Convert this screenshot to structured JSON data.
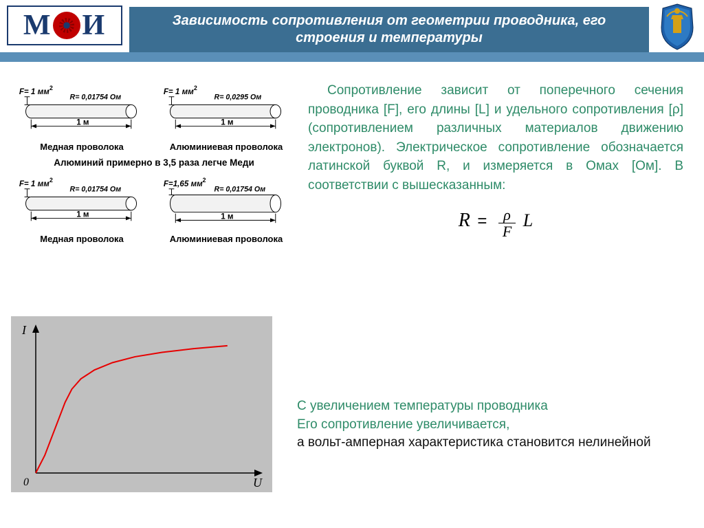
{
  "header": {
    "logo_letters": [
      "М",
      "И"
    ],
    "title": "Зависимость сопротивления от геометрии проводника, его строения и температуры",
    "band_color": "#3b6e92",
    "stripe_color": "#5a8fb8",
    "logo_border": "#1a3a6e",
    "logo_red": "#c00000"
  },
  "wires": {
    "row1": [
      {
        "F_label": "F= 1 мм",
        "F_exp": "2",
        "R_label": "R= 0,01754 Ом",
        "len": "1 м",
        "name": "Медная проволока",
        "radius": 10
      },
      {
        "F_label": "F= 1 мм",
        "F_exp": "2",
        "R_label": "R= 0,0295 Ом",
        "len": "1 м",
        "name": "Алюминиевая проволока",
        "radius": 10
      }
    ],
    "note": "Алюминий примерно в 3,5 раза легче Меди",
    "row2": [
      {
        "F_label": "F= 1 мм",
        "F_exp": "2",
        "R_label": "R= 0,01754 Ом",
        "len": "1 м",
        "name": "Медная проволока",
        "radius": 10
      },
      {
        "F_label": "F=1,65 мм",
        "F_exp": "2",
        "R_label": "R= 0,01754 Ом",
        "len": "1 м",
        "name": "Алюминиевая проволока",
        "radius": 13
      }
    ]
  },
  "paragraph": {
    "text": "Сопротивление зависит от поперечного сечения проводника [F], его длины [L] и удельного сопротивления [ρ] (сопротивлением различных материалов движению электронов). Электрическое сопротивление обозначается латинской буквой R, и измеряется в Омах [Ом]. В соответствии с вышесказанным:",
    "color": "#2e8b68",
    "font_size": 19
  },
  "formula": {
    "lhs": "R",
    "eq": "=",
    "num": "ρ",
    "den": "F",
    "tail": "L"
  },
  "chart": {
    "type": "line",
    "background_color": "#c0c0c0",
    "axis_color": "#000000",
    "curve_color": "#e60000",
    "y_label": "I",
    "x_label": "U",
    "origin_label": "0",
    "xlim": [
      0,
      100
    ],
    "ylim": [
      0,
      100
    ],
    "points": [
      [
        0,
        0
      ],
      [
        4,
        12
      ],
      [
        7,
        24
      ],
      [
        10,
        36
      ],
      [
        13,
        48
      ],
      [
        16,
        57
      ],
      [
        20,
        64
      ],
      [
        26,
        70
      ],
      [
        34,
        75
      ],
      [
        44,
        79
      ],
      [
        56,
        82
      ],
      [
        70,
        84.5
      ],
      [
        85,
        86.5
      ]
    ],
    "line_width": 2
  },
  "bottom": {
    "l1": "С увеличением температуры проводника",
    "l2": "Его сопротивление увеличивается,",
    "l3": "а вольт-амперная характеристика становится нелинейной",
    "green": "#2e8b68"
  }
}
